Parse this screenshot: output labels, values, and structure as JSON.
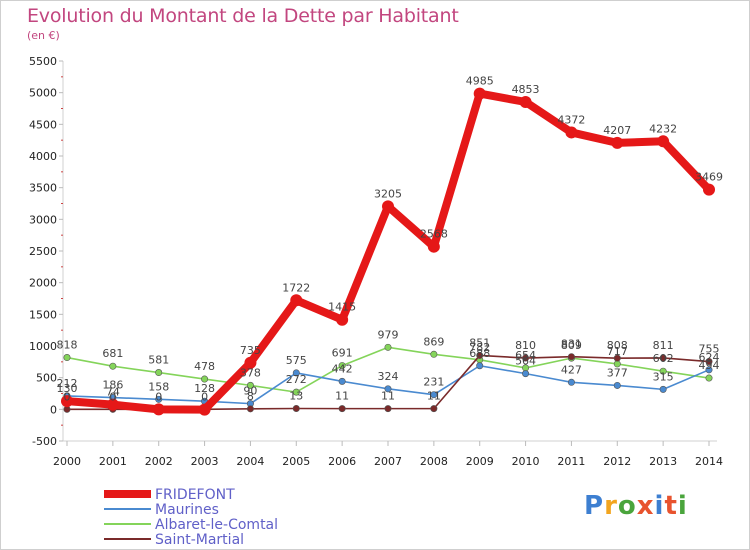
{
  "header": {
    "title": "Evolution du Montant de la Dette par Habitant",
    "subtitle": "(en €)"
  },
  "logo": {
    "text": "Proxiti",
    "colors": [
      "#3d7fd1",
      "#f2a51f",
      "#4aa53c",
      "#e8532e",
      "#3d7fd1",
      "#e8532e",
      "#4aa53c"
    ]
  },
  "chart_data": {
    "type": "line",
    "x": [
      "2000",
      "2001",
      "2002",
      "2003",
      "2004",
      "2005",
      "2006",
      "2007",
      "2008",
      "2009",
      "2010",
      "2011",
      "2012",
      "2013",
      "2014"
    ],
    "ylim": [
      -500,
      5500
    ],
    "yticks": [
      -500,
      0,
      500,
      1000,
      1500,
      2000,
      2500,
      3000,
      3500,
      4000,
      4500,
      5000,
      5500
    ],
    "grid": false,
    "legend_position": "bottom-left",
    "series": [
      {
        "name": "FRIDEFONT",
        "color": "#e51818",
        "values": [
          130,
          74,
          -1,
          -4,
          735,
          1722,
          1415,
          3205,
          2568,
          4985,
          4853,
          4372,
          4207,
          4232,
          3469
        ],
        "labels": [
          "130",
          "74",
          "",
          "",
          "735",
          "1722",
          "1415",
          "3205",
          "2568",
          "4985",
          "4853",
          "4372",
          "4207",
          "4232",
          "3469"
        ]
      },
      {
        "name": "Maurines",
        "color": "#4a8ad0",
        "values": [
          212,
          186,
          158,
          128,
          90,
          575,
          442,
          324,
          231,
          688,
          564,
          427,
          377,
          315,
          624
        ],
        "labels": [
          "212",
          "186",
          "158",
          "128",
          "90",
          "575",
          "442",
          "324",
          "231",
          "688",
          "564",
          "427",
          "377",
          "315",
          "624"
        ]
      },
      {
        "name": "Albaret-le-Comtal",
        "color": "#84d45a",
        "values": [
          818,
          681,
          581,
          478,
          378,
          272,
          691,
          979,
          869,
          782,
          654,
          809,
          717,
          602,
          494
        ],
        "labels": [
          "818",
          "681",
          "581",
          "478",
          "378",
          "272",
          "691",
          "979",
          "869",
          "782",
          "654",
          "809",
          "717",
          "602",
          "494"
        ]
      },
      {
        "name": "Saint-Martial",
        "color": "#7a2a2a",
        "values": [
          0,
          0,
          0,
          0,
          8,
          13,
          11,
          11,
          11,
          851,
          810,
          831,
          808,
          811,
          755
        ],
        "labels": [
          "0",
          "0",
          "0",
          "0",
          "8",
          "13",
          "11",
          "11",
          "11",
          "851",
          "810",
          "831",
          "808",
          "811",
          "755"
        ]
      }
    ]
  }
}
